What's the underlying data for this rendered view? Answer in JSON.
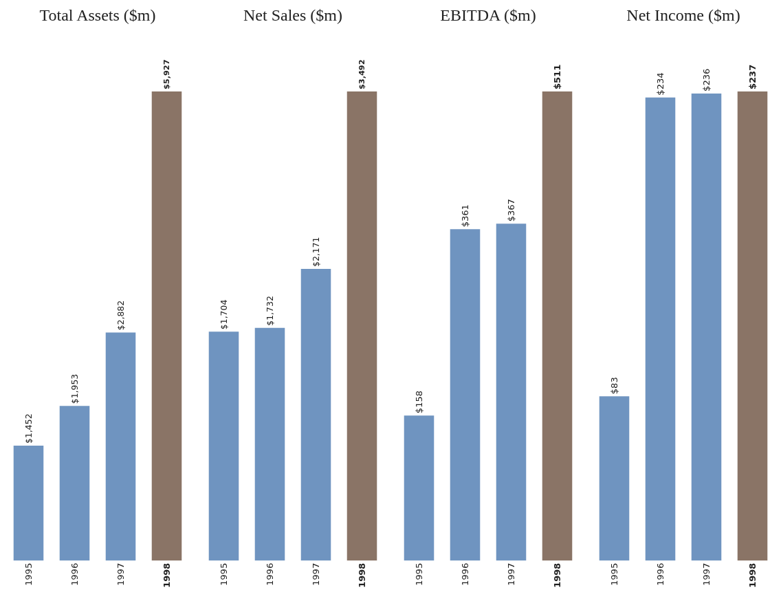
{
  "chart_data": [
    {
      "type": "bar",
      "title": "Total Assets ($m)",
      "categories": [
        "1995",
        "1996",
        "1997",
        "1998"
      ],
      "values": [
        1452,
        1953,
        2882,
        5927
      ],
      "value_labels": [
        "$1,452",
        "$1,953",
        "$2,882",
        "$5,927"
      ],
      "colors": [
        "#6f94c0",
        "#6f94c0",
        "#6f94c0",
        "#8a7466"
      ]
    },
    {
      "type": "bar",
      "title": "Net Sales ($m)",
      "categories": [
        "1995",
        "1996",
        "1997",
        "1998"
      ],
      "values": [
        1704,
        1732,
        2171,
        3492
      ],
      "value_labels": [
        "$1,704",
        "$1,732",
        "$2,171",
        "$3,492"
      ],
      "colors": [
        "#6f94c0",
        "#6f94c0",
        "#6f94c0",
        "#8a7466"
      ]
    },
    {
      "type": "bar",
      "title": "EBITDA ($m)",
      "categories": [
        "1995",
        "1996",
        "1997",
        "1998"
      ],
      "values": [
        158,
        361,
        367,
        511
      ],
      "value_labels": [
        "$158",
        "$361",
        "$367",
        "$511"
      ],
      "colors": [
        "#6f94c0",
        "#6f94c0",
        "#6f94c0",
        "#8a7466"
      ]
    },
    {
      "type": "bar",
      "title": "Net Income ($m)",
      "categories": [
        "1995",
        "1996",
        "1997",
        "1998"
      ],
      "values": [
        83,
        234,
        236,
        237
      ],
      "value_labels": [
        "$83",
        "$234",
        "$236",
        "$237"
      ],
      "colors": [
        "#6f94c0",
        "#6f94c0",
        "#6f94c0",
        "#8a7466"
      ]
    }
  ]
}
